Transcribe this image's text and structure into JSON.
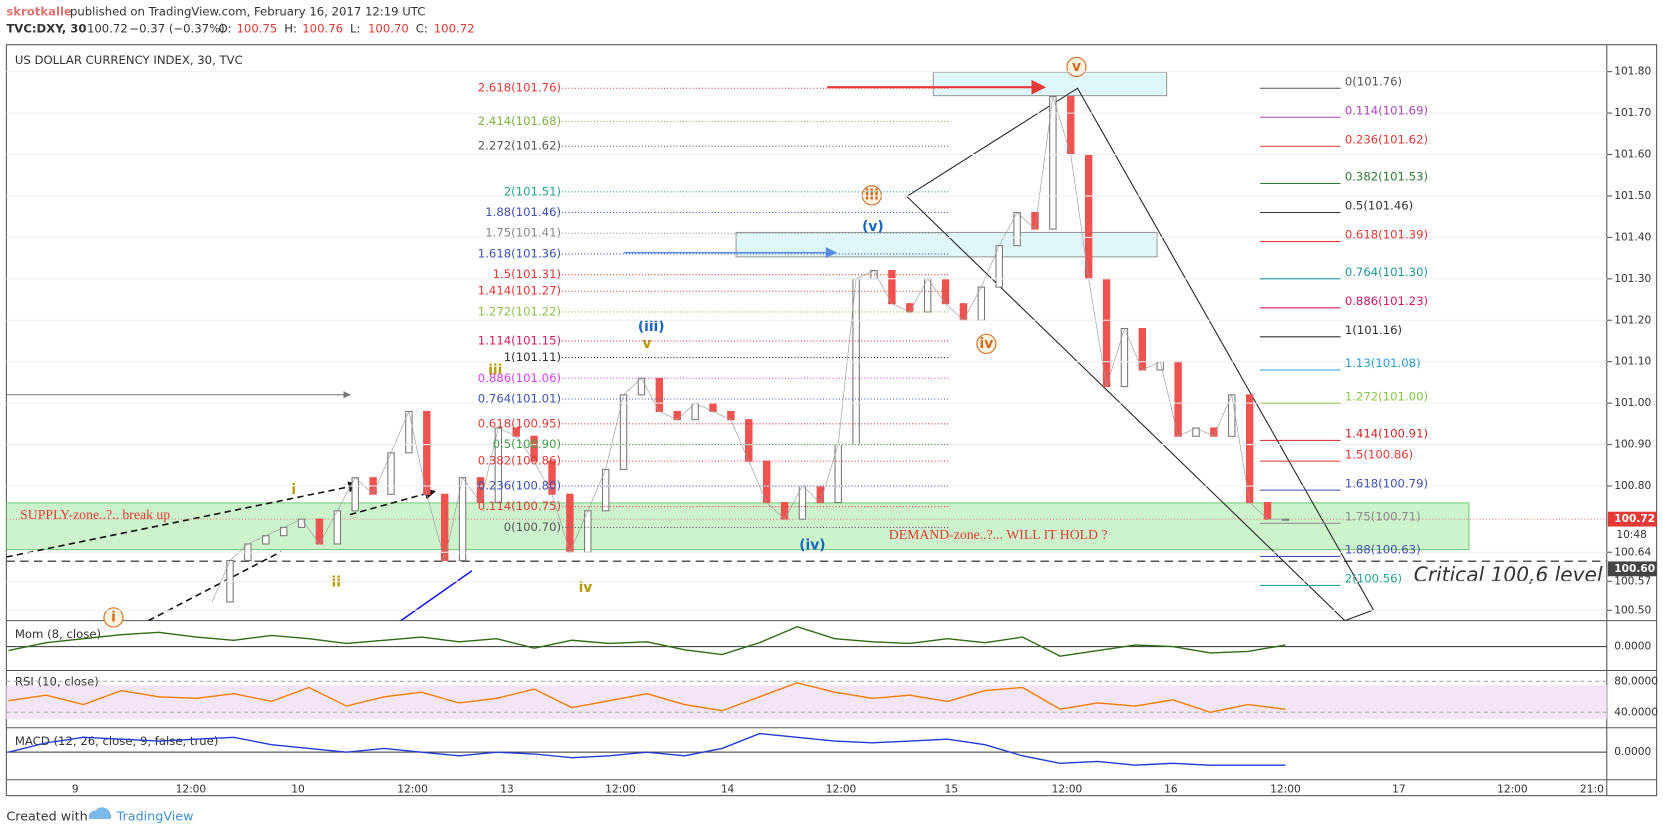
{
  "header": {
    "author": "skrotkalle",
    "published": "published on TradingView.com, February 16, 2017 12:19 UTC",
    "symbol": "TVC:DXY, 30",
    "last": "100.72",
    "change": "−0.37 (−0.37%)",
    "ohlc": [
      {
        "k": "O:",
        "v": "100.75"
      },
      {
        "k": "H:",
        "v": "100.76"
      },
      {
        "k": "L:",
        "v": "100.70"
      },
      {
        "k": "C:",
        "v": "100.72"
      }
    ]
  },
  "chart": {
    "title": "US DOLLAR CURRENCY INDEX, 30, TVC",
    "ylim": [
      100.475,
      101.865
    ],
    "yticks": [
      {
        "value": 101.8,
        "label": "101.80"
      },
      {
        "value": 101.7,
        "label": "101.70"
      },
      {
        "value": 101.6,
        "label": "101.60"
      },
      {
        "value": 101.5,
        "label": "101.50"
      },
      {
        "value": 101.4,
        "label": "101.40"
      },
      {
        "value": 101.3,
        "label": "101.30"
      },
      {
        "value": 101.2,
        "label": "101.20"
      },
      {
        "value": 101.1,
        "label": "101.10"
      },
      {
        "value": 101,
        "label": "101.00"
      },
      {
        "value": 100.9,
        "label": "100.90"
      },
      {
        "value": 100.8,
        "label": "100.80"
      },
      {
        "value": 100.64,
        "label": "100.64"
      },
      {
        "value": 100.57,
        "label": "100.57"
      },
      {
        "value": 100.5,
        "label": "100.50"
      }
    ],
    "last_tag": {
      "value": 100.72,
      "label": "100.72",
      "countdown": "10:48"
    },
    "critical_tag": {
      "value": 100.6,
      "label": "100.60"
    },
    "xticks": [
      "9",
      "12:00",
      "10",
      "12:00",
      "13",
      "12:00",
      "14",
      "12:00",
      "15",
      "12:00",
      "16",
      "12:00",
      "17",
      "12:00",
      "21:0"
    ],
    "price": [
      100.52,
      100.62,
      100.66,
      100.68,
      100.7,
      100.72,
      100.66,
      100.74,
      100.82,
      100.78,
      100.88,
      100.98,
      100.78,
      100.62,
      100.82,
      100.76,
      100.94,
      100.92,
      100.86,
      100.78,
      100.64,
      100.74,
      100.84,
      101.02,
      101.06,
      100.98,
      100.96,
      101.0,
      100.98,
      100.96,
      100.86,
      100.76,
      100.72,
      100.8,
      100.76,
      100.9,
      101.3,
      101.32,
      101.24,
      101.22,
      101.3,
      101.24,
      101.2,
      101.28,
      101.38,
      101.46,
      101.42,
      101.74,
      101.6,
      101.3,
      101.04,
      101.18,
      101.08,
      101.1,
      100.92,
      100.94,
      100.92,
      101.02,
      100.76,
      100.72,
      100.72
    ],
    "fib_left": [
      {
        "label": "2.618(101.76)",
        "level": 101.76,
        "color": "#e53935"
      },
      {
        "label": "2.414(101.68)",
        "level": 101.68,
        "color": "#7cb342"
      },
      {
        "label": "2.272(101.62)",
        "level": 101.62,
        "color": "#555555"
      },
      {
        "label": "2(101.51)",
        "level": 101.51,
        "color": "#26a69a"
      },
      {
        "label": "1.88(101.46)",
        "level": 101.46,
        "color": "#3f51b5"
      },
      {
        "label": "1.75(101.41)",
        "level": 101.41,
        "color": "#888888"
      },
      {
        "label": "1.618(101.36)",
        "level": 101.36,
        "color": "#3f51b5"
      },
      {
        "label": "1.5(101.31)",
        "level": 101.31,
        "color": "#e53935"
      },
      {
        "label": "1.414(101.27)",
        "level": 101.27,
        "color": "#e53935"
      },
      {
        "label": "1.272(101.22)",
        "level": 101.22,
        "color": "#8bc34a"
      },
      {
        "label": "1.114(101.15)",
        "level": 101.15,
        "color": "#d81b60"
      },
      {
        "label": "1(101.11)",
        "level": 101.11,
        "color": "#333333"
      },
      {
        "label": "0.886(101.06)",
        "level": 101.06,
        "color": "#e040fb"
      },
      {
        "label": "0.764(101.01)",
        "level": 101.01,
        "color": "#3f51b5"
      },
      {
        "label": "0.618(100.95)",
        "level": 100.95,
        "color": "#e53935"
      },
      {
        "label": "0.5(100.90)",
        "level": 100.9,
        "color": "#43a047"
      },
      {
        "label": "0.382(100.86)",
        "level": 100.86,
        "color": "#e53935"
      },
      {
        "label": "0.236(100.80)",
        "level": 100.8,
        "color": "#3f51b5"
      },
      {
        "label": "0.114(100.75)",
        "level": 100.75,
        "color": "#e53935"
      },
      {
        "label": "0(100.70)",
        "level": 100.7,
        "color": "#555555"
      }
    ],
    "fib_right": [
      {
        "label": "0(101.76)",
        "level": 101.76,
        "color": "#555555"
      },
      {
        "label": "0.114(101.69)",
        "level": 101.69,
        "color": "#ab47bc"
      },
      {
        "label": "0.236(101.62)",
        "level": 101.62,
        "color": "#e53935"
      },
      {
        "label": "0.382(101.53)",
        "level": 101.53,
        "color": "#2e7d32"
      },
      {
        "label": "0.5(101.46)",
        "level": 101.46,
        "color": "#333333"
      },
      {
        "label": "0.618(101.39)",
        "level": 101.39,
        "color": "#e53935"
      },
      {
        "label": "0.764(101.30)",
        "level": 101.3,
        "color": "#2196a3"
      },
      {
        "label": "0.886(101.23)",
        "level": 101.23,
        "color": "#d81b60"
      },
      {
        "label": "1(101.16)",
        "level": 101.16,
        "color": "#333333"
      },
      {
        "label": "1.13(101.08)",
        "level": 101.08,
        "color": "#29a0d8"
      },
      {
        "label": "1.272(101.00)",
        "level": 101.0,
        "color": "#8bc34a"
      },
      {
        "label": "1.414(100.91)",
        "level": 100.91,
        "color": "#c62828"
      },
      {
        "label": "1.5(100.86)",
        "level": 100.86,
        "color": "#e53935"
      },
      {
        "label": "1.618(100.79)",
        "level": 100.79,
        "color": "#3f51b5"
      },
      {
        "label": "1.75(100.71)",
        "level": 100.71,
        "color": "#888888"
      },
      {
        "label": "1.88(100.63)",
        "level": 100.63,
        "color": "#3f51b5"
      },
      {
        "label": "2(100.56)",
        "level": 100.56,
        "color": "#26a69a"
      }
    ],
    "waves": {
      "i": "i",
      "ii": "ii",
      "iii": "iii",
      "iv": "iv",
      "v": "v",
      "iii_b": "(iii)",
      "iv_b": "(iv)",
      "v_b": "(v)",
      "iii_c": "iii",
      "iv_c": "iv",
      "v_c": "v",
      "i_c": "i"
    },
    "notes": {
      "supply": "SUPPLY-zone..?.. break up",
      "demand": "DEMAND-zone..?... WILL IT HOLD ?",
      "critical": "Critical 100,6 level"
    }
  },
  "mom": {
    "label": "Mom (8, close)",
    "ylim": [
      -0.3,
      0.3
    ],
    "yticks": [
      {
        "value": 0,
        "label": "0.0000"
      }
    ],
    "values": [
      -0.05,
      0.05,
      0.1,
      0.15,
      0.18,
      0.12,
      0.08,
      0.14,
      0.1,
      0.04,
      0.08,
      0.12,
      0.06,
      0.1,
      -0.02,
      0.08,
      0.04,
      0.06,
      -0.04,
      -0.1,
      0.05,
      0.25,
      0.1,
      0.06,
      0.04,
      0.1,
      0.05,
      0.12,
      -0.12,
      -0.05,
      0.02,
      0.0,
      -0.08,
      -0.06,
      0.02
    ]
  },
  "rsi": {
    "label": "RSI (10, close)",
    "ylim": [
      20,
      94
    ],
    "yticks": [
      {
        "value": 80,
        "label": "80.0000"
      },
      {
        "value": 40,
        "label": "40.0000"
      }
    ],
    "values": [
      55,
      62,
      50,
      68,
      60,
      58,
      64,
      54,
      72,
      48,
      60,
      66,
      52,
      58,
      70,
      46,
      55,
      64,
      50,
      42,
      60,
      78,
      66,
      58,
      62,
      54,
      68,
      72,
      44,
      52,
      48,
      56,
      40,
      50,
      44
    ]
  },
  "macd": {
    "label": "MACD (12, 26, close, 9, false, true)",
    "ylim": [
      -0.12,
      0.12
    ],
    "yticks": [
      {
        "value": 0,
        "label": "0.0000"
      }
    ],
    "values": [
      0.0,
      0.05,
      0.08,
      0.07,
      0.06,
      0.07,
      0.08,
      0.04,
      0.02,
      0.0,
      0.02,
      0.0,
      -0.02,
      0.0,
      -0.01,
      -0.03,
      -0.02,
      0.0,
      -0.02,
      0.02,
      0.1,
      0.08,
      0.06,
      0.05,
      0.06,
      0.07,
      0.04,
      -0.02,
      -0.06,
      -0.05,
      -0.07,
      -0.06,
      -0.07,
      -0.07,
      -0.07
    ]
  },
  "footer": {
    "created": "Created with",
    "brand": "TradingView"
  }
}
